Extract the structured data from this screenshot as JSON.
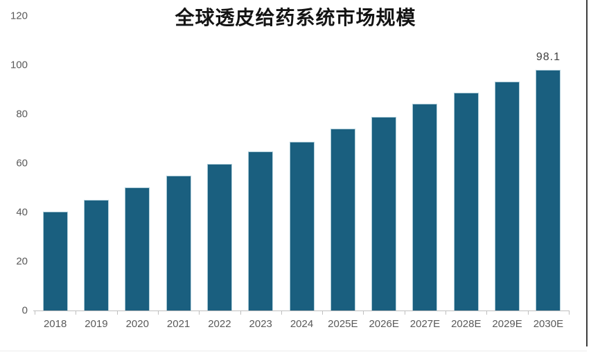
{
  "frame": {
    "right_border_color": "#3C3C3C",
    "bottom_line_color": "#EDEDED",
    "background_color": "#FFFFFF"
  },
  "chart_data": {
    "type": "bar",
    "title": "全球透皮给药系统市场规模",
    "categories": [
      "2018",
      "2019",
      "2020",
      "2021",
      "2022",
      "2023",
      "2024",
      "2025E",
      "2026E",
      "2027E",
      "2028E",
      "2029E",
      "2030E"
    ],
    "values": [
      40.3,
      45.1,
      50.2,
      55.0,
      59.8,
      64.8,
      68.8,
      74.1,
      78.9,
      84.3,
      88.8,
      93.3,
      98.1
    ],
    "point_labels": [
      "",
      "",
      "",
      "",
      "",
      "",
      "",
      "",
      "",
      "",
      "",
      "",
      "98.1"
    ],
    "xlabel": "",
    "ylabel": "",
    "ylim": [
      0,
      120
    ],
    "yticks": [
      0,
      20,
      40,
      60,
      80,
      100,
      120
    ],
    "grid": false,
    "legend": null,
    "bar_color": "#1A5F7F",
    "bar_edge_color": "#AECDD9",
    "axis_line_color": "#BFBFBF",
    "tick_label_color": "#595959",
    "data_label_color": "#3F3F3F",
    "title_color": "#141414"
  }
}
